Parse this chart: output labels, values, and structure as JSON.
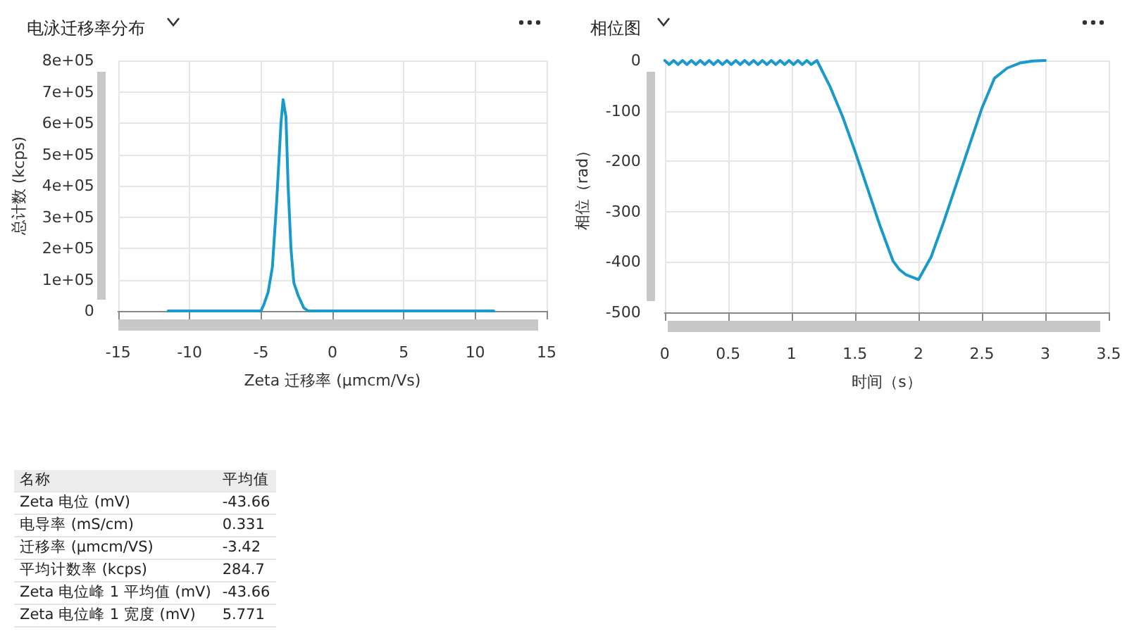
{
  "chart_data": [
    {
      "type": "line",
      "title": "电泳迁移率分布",
      "xlabel": "Zeta 迁移率 (µmcm/Vs)",
      "ylabel": "总计数 (kcps)",
      "xlim": [
        -15,
        15
      ],
      "xticks": [
        -15,
        -10,
        -5,
        0,
        5,
        10,
        15
      ],
      "ylim": [
        0,
        800000
      ],
      "yticks": [
        0,
        {
          "value": 100000,
          "label": "1e+05"
        },
        {
          "value": 200000,
          "label": "2e+05"
        },
        {
          "value": 300000,
          "label": "3e+05"
        },
        {
          "value": 400000,
          "label": "4e+05"
        },
        {
          "value": 500000,
          "label": "5e+05"
        },
        {
          "value": 600000,
          "label": "6e+05"
        },
        {
          "value": 700000,
          "label": "7e+05"
        },
        {
          "value": 800000,
          "label": "8e+05"
        }
      ],
      "grid": true,
      "marker": "none",
      "line_style": "solid",
      "series": [
        {
          "color": "#1a9ac9",
          "x": [
            -11.5,
            -8,
            -5,
            -4.8,
            -4.5,
            -4.2,
            -3.9,
            -3.6,
            -3.45,
            -3.25,
            -3.1,
            -2.9,
            -2.7,
            -2.4,
            -2.0,
            -1.7,
            2,
            6,
            11.3
          ],
          "values": [
            0,
            0,
            0,
            20000,
            60000,
            140000,
            350000,
            600000,
            675000,
            620000,
            400000,
            200000,
            90000,
            50000,
            10000,
            0,
            0,
            0,
            0
          ]
        }
      ]
    },
    {
      "type": "line",
      "title": "相位图",
      "xlabel": "时间（s）",
      "ylabel": "相位（rad）",
      "xlim": [
        0,
        3.5
      ],
      "xticks": [
        0,
        0.5,
        1,
        1.5,
        2,
        2.5,
        3,
        3.5
      ],
      "ylim": [
        -500,
        0
      ],
      "yticks": [
        -500,
        -400,
        -300,
        -200,
        -100,
        0
      ],
      "grid": true,
      "marker": "none",
      "line_style": "solid",
      "series": [
        {
          "color": "#1a9ac9",
          "x": [
            0,
            0.035,
            0.07,
            0.105,
            0.14,
            0.175,
            0.21,
            0.245,
            0.28,
            0.315,
            0.35,
            0.385,
            0.42,
            0.455,
            0.49,
            0.525,
            0.56,
            0.595,
            0.63,
            0.665,
            0.7,
            0.735,
            0.77,
            0.805,
            0.84,
            0.875,
            0.91,
            0.945,
            0.98,
            1.015,
            1.05,
            1.085,
            1.12,
            1.155,
            1.2,
            1.3,
            1.4,
            1.5,
            1.6,
            1.7,
            1.8,
            1.85,
            1.9,
            2.0,
            2.1,
            2.2,
            2.3,
            2.4,
            2.5,
            2.6,
            2.7,
            2.8,
            2.9,
            3.0
          ],
          "values": [
            0,
            -8,
            0,
            -8,
            0,
            -8,
            0,
            -8,
            0,
            -8,
            0,
            -8,
            0,
            -8,
            0,
            -8,
            0,
            -8,
            0,
            -8,
            0,
            -8,
            0,
            -8,
            0,
            -8,
            0,
            -8,
            0,
            -8,
            0,
            -8,
            0,
            -8,
            0,
            -50,
            -110,
            -180,
            -255,
            -330,
            -398,
            -415,
            -425,
            -435,
            -390,
            -320,
            -245,
            -170,
            -95,
            -35,
            -15,
            -5,
            -1,
            0
          ]
        }
      ]
    },
    {
      "type": "other",
      "annotations": [
        "名称",
        "平均值"
      ],
      "categories": [
        "Zeta 电位 (mV)",
        "电导率 (mS/cm)",
        "迁移率 (µmcm/VS)",
        "平均计数率 (kcps)",
        "Zeta 电位峰 1 平均值 (mV)",
        "Zeta 电位峰 1 宽度 (mV)"
      ],
      "values": [
        -43.66,
        0.331,
        -3.42,
        284.7,
        -43.66,
        5.771
      ],
      "data_labels": true
    }
  ]
}
